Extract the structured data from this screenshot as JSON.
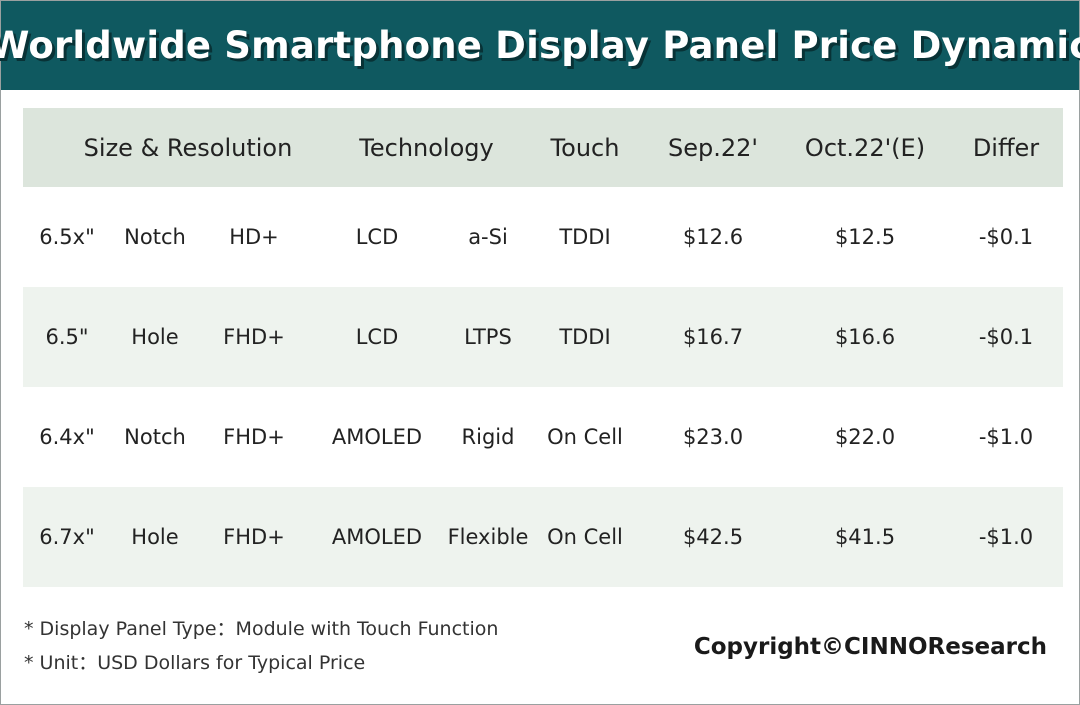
{
  "title": "Worldwide Smartphone Display Panel Price Dynamic",
  "chart_data": {
    "type": "table",
    "headers": [
      "Size & Resolution",
      "Technology",
      "Touch",
      "Sep.22'",
      "Oct.22'(E)",
      "Differ"
    ],
    "rows": [
      [
        "6.5x\"",
        "Notch",
        "HD+",
        "LCD",
        "a-Si",
        "TDDI",
        "$12.6",
        "$12.5",
        "-$0.1"
      ],
      [
        "6.5\"",
        "Hole",
        "FHD+",
        "LCD",
        "LTPS",
        "TDDI",
        "$16.7",
        "$16.6",
        "-$0.1"
      ],
      [
        "6.4x\"",
        "Notch",
        "FHD+",
        "AMOLED",
        "Rigid",
        "On Cell",
        "$23.0",
        "$22.0",
        "-$1.0"
      ],
      [
        "6.7x\"",
        "Hole",
        "FHD+",
        "AMOLED",
        "Flexible",
        "On Cell",
        "$42.5",
        "$41.5",
        "-$1.0"
      ]
    ],
    "values": {
      "sep22": [
        12.6,
        16.7,
        23.0,
        42.5
      ],
      "oct22_e": [
        12.5,
        16.6,
        22.0,
        41.5
      ],
      "differ": [
        -0.1,
        -0.1,
        -1.0,
        -1.0
      ]
    }
  },
  "notes": [
    "* Display Panel Type：Module with Touch Function",
    "* Unit：USD Dollars for Typical Price"
  ],
  "copyright": "Copyright©CINNOResearch",
  "colors": {
    "title_bg": "#0f5960",
    "header_bg": "#dce5dc",
    "alt_row_bg": "#eef3ee"
  }
}
